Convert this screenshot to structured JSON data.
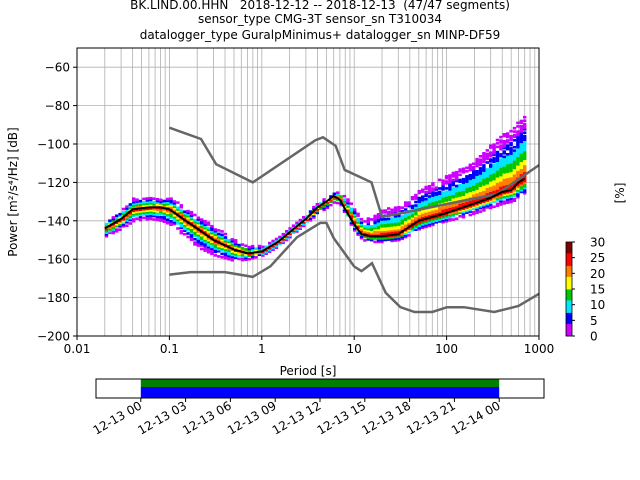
{
  "header": {
    "line1": "BK.LIND.00.HHN   2018-12-12 -- 2018-12-13  (47/47 segments)",
    "line2": "sensor_type CMG-3T sensor_sn T310034",
    "line3": "datalogger_type GuralpMinimus+ datalogger_sn MINP-DF59"
  },
  "chart_data": [
    {
      "type": "heatmap",
      "xlabel": "Period [s]",
      "ylabel": "Power [m²/s⁴/Hz] [dB]",
      "xscale": "log",
      "xlim": [
        0.01,
        1000
      ],
      "ylim": [
        -200,
        -50
      ],
      "x_ticks": [
        {
          "v": 0.01,
          "label": "0.01"
        },
        {
          "v": 0.1,
          "label": "0.1"
        },
        {
          "v": 1,
          "label": "1"
        },
        {
          "v": 10,
          "label": "10"
        },
        {
          "v": 100,
          "label": "100"
        },
        {
          "v": 1000,
          "label": "1000"
        }
      ],
      "y_ticks": [
        {
          "v": -60,
          "label": "−60"
        },
        {
          "v": -80,
          "label": "−80"
        },
        {
          "v": -100,
          "label": "−100"
        },
        {
          "v": -120,
          "label": "−120"
        },
        {
          "v": -140,
          "label": "−140"
        },
        {
          "v": -160,
          "label": "−160"
        },
        {
          "v": -180,
          "label": "−180"
        },
        {
          "v": -200,
          "label": "−200"
        }
      ],
      "grid": true,
      "colorbar": {
        "label": "[%]",
        "range": [
          0,
          30
        ],
        "ticks": [
          {
            "v": 0,
            "label": "0"
          },
          {
            "v": 5,
            "label": "5"
          },
          {
            "v": 10,
            "label": "10"
          },
          {
            "v": 15,
            "label": "15"
          },
          {
            "v": 20,
            "label": "20"
          },
          {
            "v": 25,
            "label": "25"
          },
          {
            "v": 30,
            "label": "30"
          }
        ],
        "colors": [
          "#ffffff",
          "#cc00ff",
          "#0000ff",
          "#00e5ff",
          "#00c800",
          "#ffff00",
          "#ff7f00",
          "#ff0000",
          "#800000"
        ]
      },
      "nhnm": {
        "color": "#666666",
        "x": [
          0.1,
          0.22,
          0.32,
          0.8,
          3.8,
          4.6,
          6.3,
          7.9,
          15.4,
          20,
          354.8,
          1000
        ],
        "y": [
          -91.5,
          -97.4,
          -110.5,
          -120,
          -98,
          -96.5,
          -101,
          -113.5,
          -120,
          -138,
          -126,
          -111
        ]
      },
      "nlnm": {
        "color": "#666666",
        "x": [
          0.1,
          0.17,
          0.4,
          0.8,
          1.24,
          2.4,
          4.3,
          5,
          6,
          10,
          12,
          15.6,
          21.9,
          31.6,
          45,
          70,
          101,
          154,
          328,
          600,
          1000
        ],
        "y": [
          -168,
          -166.7,
          -166.7,
          -169.2,
          -163.7,
          -148.6,
          -141.1,
          -141.1,
          -149,
          -163.8,
          -166.2,
          -162.1,
          -177.5,
          -185,
          -187.5,
          -187.5,
          -185,
          -185,
          -187.5,
          -184.4,
          -178
        ]
      },
      "mode": {
        "name": "",
        "color": "#000000",
        "x": [
          0.02,
          0.03,
          0.04,
          0.06,
          0.08,
          0.1,
          0.15,
          0.2,
          0.3,
          0.5,
          0.7,
          1.0,
          1.5,
          2.0,
          3.0,
          4.0,
          5.0,
          6.0,
          7.0,
          8.0,
          10,
          12,
          15,
          20,
          30,
          40,
          50,
          70,
          100,
          150,
          200,
          300,
          400,
          500,
          600,
          700
        ],
        "y": [
          -144,
          -139,
          -134,
          -133,
          -133,
          -134,
          -140,
          -144,
          -150,
          -155,
          -157,
          -156,
          -151,
          -146,
          -139,
          -133,
          -130,
          -127,
          -129,
          -134,
          -142,
          -147,
          -148,
          -148,
          -147,
          -143,
          -140,
          -138,
          -136,
          -133,
          -131,
          -128,
          -125,
          -124,
          -120,
          -118
        ]
      },
      "density_band": {
        "lower": [
          -148,
          -144,
          -140,
          -139,
          -140,
          -142,
          -149,
          -154,
          -158,
          -161,
          -160,
          -158,
          -153,
          -148,
          -141,
          -136,
          -133,
          -130,
          -132,
          -138,
          -146,
          -150,
          -151,
          -151,
          -150,
          -147,
          -144,
          -142,
          -140,
          -138,
          -136,
          -133,
          -131,
          -130,
          -128,
          -126
        ],
        "upper": [
          -140,
          -134,
          -128,
          -128,
          -128,
          -128,
          -134,
          -138,
          -143,
          -150,
          -153,
          -153,
          -148,
          -143,
          -136,
          -130,
          -128,
          -125,
          -125,
          -128,
          -134,
          -140,
          -138,
          -134,
          -132,
          -128,
          -124,
          -120,
          -116,
          -112,
          -108,
          -100,
          -95,
          -92,
          -87,
          -84
        ]
      }
    },
    {
      "type": "bar",
      "title": "",
      "x_ticks": [
        "12-13 00",
        "12-13 03",
        "12-13 06",
        "12-13 09",
        "12-13 12",
        "12-13 15",
        "12-13 18",
        "12-13 21",
        "12-14 00"
      ],
      "xlim_hours": [
        -3,
        27
      ],
      "series": [
        {
          "color": "#008000",
          "start_hour": 0,
          "end_hour": 24
        },
        {
          "color": "#0000ff",
          "start_hour": 0,
          "end_hour": 24
        }
      ]
    }
  ]
}
